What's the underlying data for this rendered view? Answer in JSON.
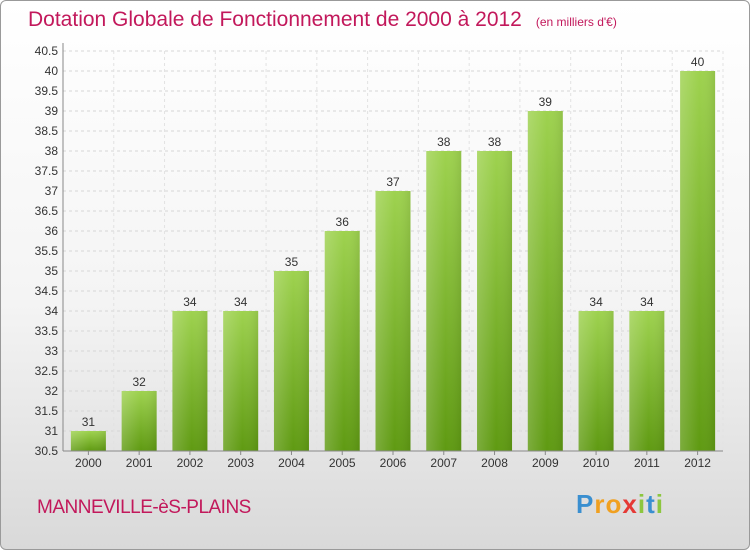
{
  "title": "Dotation Globale de Fonctionnement de 2000 à 2012",
  "unit": "(en milliers d'€)",
  "town": "MANNEVILLE-èS-PLAINS",
  "logo": {
    "letters": [
      "P",
      "r",
      "o",
      "x",
      "i",
      "t",
      "i"
    ],
    "colors": [
      "#3a8fd0",
      "#f0a020",
      "#f0a020",
      "#e53935",
      "#8cc63f",
      "#3a8fd0",
      "#8cc63f"
    ]
  },
  "colors": {
    "bar_top": "#9ed24f",
    "bar_bottom": "#5f9a12",
    "title": "#c2185b"
  },
  "chart_data": {
    "type": "bar",
    "categories": [
      "2000",
      "2001",
      "2002",
      "2003",
      "2004",
      "2005",
      "2006",
      "2007",
      "2008",
      "2009",
      "2010",
      "2011",
      "2012"
    ],
    "values": [
      31,
      32,
      34,
      34,
      35,
      36,
      37,
      38,
      38,
      39,
      34,
      34,
      40
    ],
    "data_labels": [
      "31",
      "32",
      "34",
      "34",
      "35",
      "36",
      "37",
      "38",
      "38",
      "39",
      "34",
      "34",
      "40"
    ],
    "ylim": [
      30.5,
      40.5
    ],
    "yticks": [
      "30.5",
      "31",
      "31.5",
      "32",
      "32.5",
      "33",
      "33.5",
      "34",
      "34.5",
      "35",
      "35.5",
      "36",
      "36.5",
      "37",
      "37.5",
      "38",
      "38.5",
      "39",
      "39.5",
      "40",
      "40.5"
    ],
    "grid": true
  }
}
